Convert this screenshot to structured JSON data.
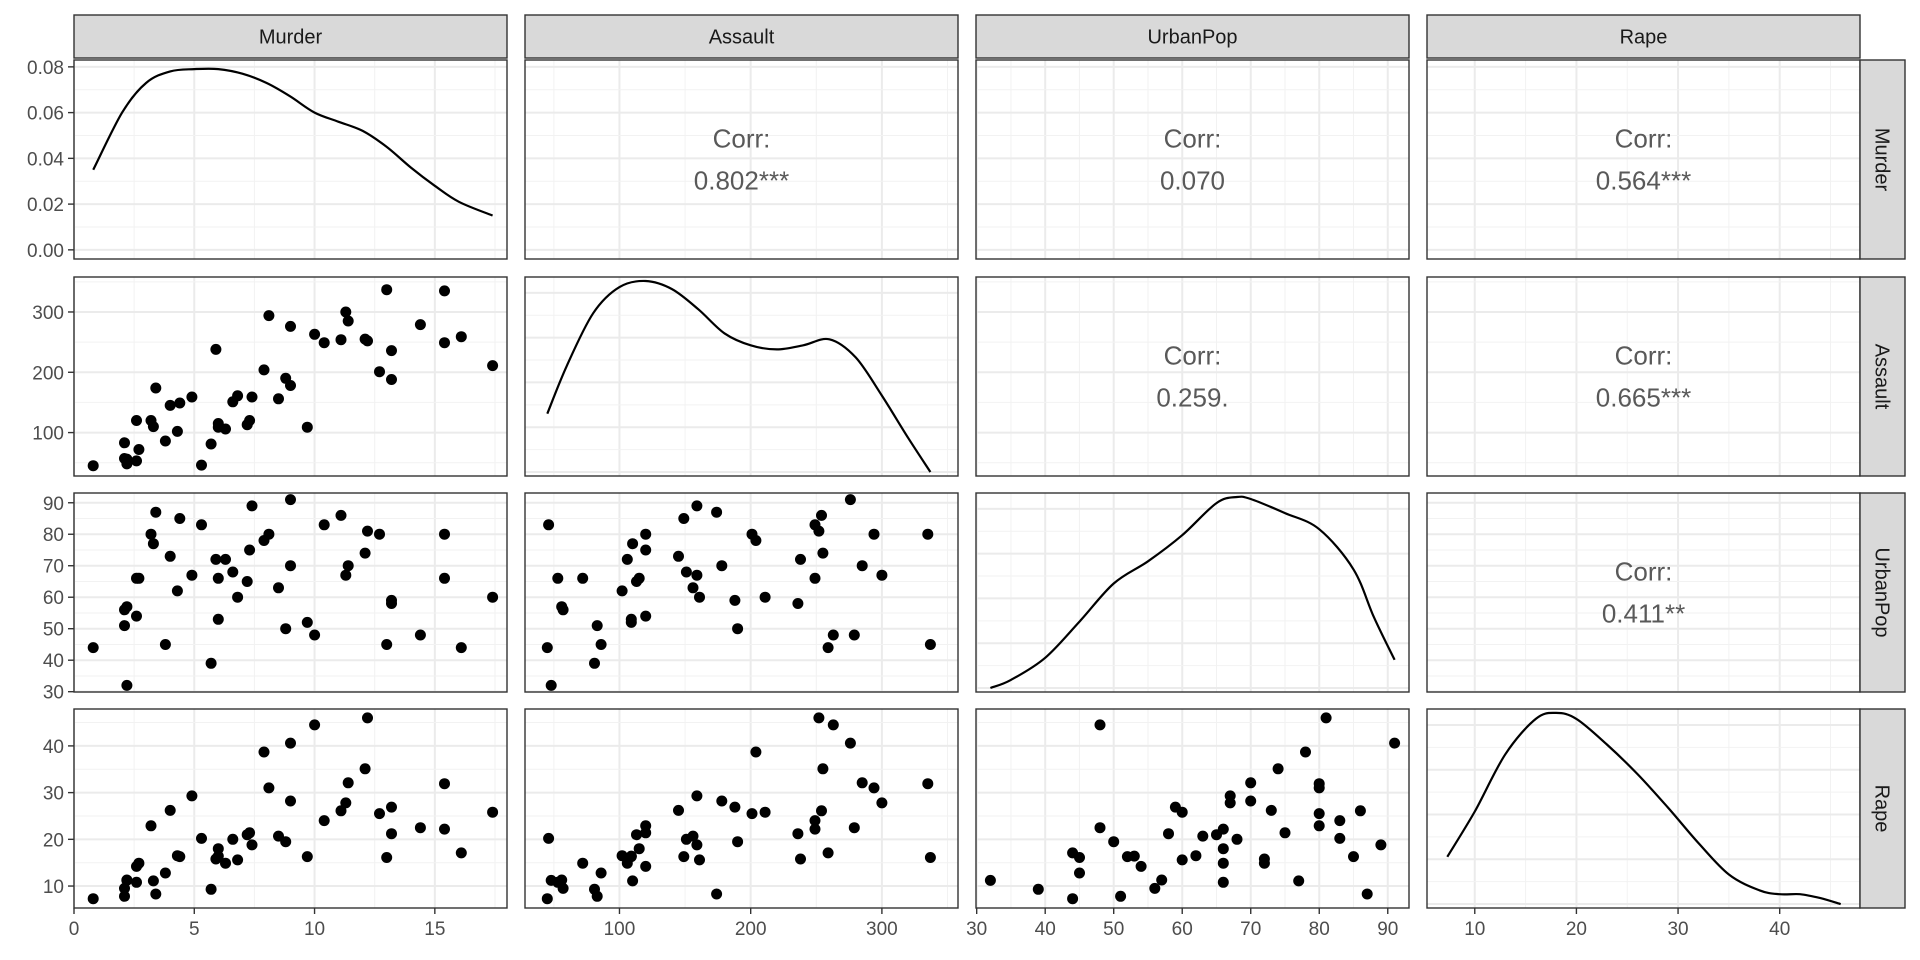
{
  "chart_data": {
    "type": "scatter-matrix",
    "variables": [
      "Murder",
      "Assault",
      "UrbanPop",
      "Rape"
    ],
    "columns": [
      {
        "name": "Murder",
        "range": [
          0,
          18
        ],
        "ticks": [
          {
            "v": 0,
            "label": "0"
          },
          {
            "v": 5,
            "label": "5"
          },
          {
            "v": 10,
            "label": "10"
          },
          {
            "v": 15,
            "label": "15"
          }
        ]
      },
      {
        "name": "Assault",
        "range": [
          28,
          358
        ],
        "ticks": [
          {
            "v": 100,
            "label": "100"
          },
          {
            "v": 200,
            "label": "200"
          },
          {
            "v": 300,
            "label": "300"
          }
        ]
      },
      {
        "name": "UrbanPop",
        "range": [
          29.9,
          93.1
        ],
        "ticks": [
          {
            "v": 30,
            "label": "30"
          },
          {
            "v": 40,
            "label": "40"
          },
          {
            "v": 50,
            "label": "50"
          },
          {
            "v": 60,
            "label": "60"
          },
          {
            "v": 70,
            "label": "70"
          },
          {
            "v": 80,
            "label": "80"
          },
          {
            "v": 90,
            "label": "90"
          }
        ]
      },
      {
        "name": "Rape",
        "range": [
          5.3,
          47.9
        ],
        "ticks": [
          {
            "v": 10,
            "label": "10"
          },
          {
            "v": 20,
            "label": "20"
          },
          {
            "v": 30,
            "label": "30"
          },
          {
            "v": 40,
            "label": "40"
          }
        ]
      }
    ],
    "rows": [
      {
        "name": "Murder",
        "range": [
          -0.004,
          0.083
        ],
        "ticks": [
          {
            "v": 0,
            "label": "0.00"
          },
          {
            "v": 0.02,
            "label": "0.02"
          },
          {
            "v": 0.04,
            "label": "0.04"
          },
          {
            "v": 0.06,
            "label": "0.06"
          },
          {
            "v": 0.08,
            "label": "0.08"
          }
        ]
      },
      {
        "name": "Assault",
        "range": [
          28,
          358
        ],
        "ticks": [
          {
            "v": 100,
            "label": "100"
          },
          {
            "v": 200,
            "label": "200"
          },
          {
            "v": 300,
            "label": "300"
          }
        ]
      },
      {
        "name": "UrbanPop",
        "range": [
          29.9,
          93.1
        ],
        "ticks": [
          {
            "v": 30,
            "label": "30"
          },
          {
            "v": 40,
            "label": "40"
          },
          {
            "v": 50,
            "label": "50"
          },
          {
            "v": 60,
            "label": "60"
          },
          {
            "v": 70,
            "label": "70"
          },
          {
            "v": 80,
            "label": "80"
          },
          {
            "v": 90,
            "label": "90"
          }
        ]
      },
      {
        "name": "Rape",
        "range": [
          5.3,
          47.9
        ],
        "ticks": [
          {
            "v": 10,
            "label": "10"
          },
          {
            "v": 20,
            "label": "20"
          },
          {
            "v": 30,
            "label": "30"
          },
          {
            "v": 40,
            "label": "40"
          }
        ]
      }
    ],
    "correlations": [
      {
        "row": 0,
        "col": 1,
        "label": "Corr:",
        "value": "0.802***"
      },
      {
        "row": 0,
        "col": 2,
        "label": "Corr:",
        "value": "0.070"
      },
      {
        "row": 0,
        "col": 3,
        "label": "Corr:",
        "value": "0.564***"
      },
      {
        "row": 1,
        "col": 2,
        "label": "Corr:",
        "value": "0.259."
      },
      {
        "row": 1,
        "col": 3,
        "label": "Corr:",
        "value": "0.665***"
      },
      {
        "row": 2,
        "col": 3,
        "label": "Corr:",
        "value": "0.411**"
      }
    ],
    "densities": {
      "Murder": {
        "x": [
          0.8,
          2,
          3,
          4,
          5,
          6,
          7,
          8,
          9,
          10,
          11,
          12,
          13,
          14,
          15,
          16,
          17.4
        ],
        "y": [
          0.035,
          0.06,
          0.073,
          0.078,
          0.079,
          0.079,
          0.077,
          0.073,
          0.067,
          0.06,
          0.056,
          0.052,
          0.045,
          0.036,
          0.028,
          0.021,
          0.015
        ]
      },
      "Assault": {
        "x": [
          45,
          60,
          80,
          100,
          120,
          140,
          160,
          180,
          200,
          220,
          240,
          260,
          280,
          300,
          320,
          337
        ],
        "y": [
          0.34,
          0.58,
          0.84,
          0.97,
          1.0,
          0.96,
          0.86,
          0.74,
          0.68,
          0.66,
          0.68,
          0.71,
          0.62,
          0.43,
          0.22,
          0.05
        ]
      },
      "UrbanPop": {
        "x": [
          32,
          35,
          40,
          45,
          50,
          55,
          60,
          65,
          68,
          70,
          75,
          80,
          85,
          88,
          91
        ],
        "y": [
          0.03,
          0.07,
          0.18,
          0.36,
          0.55,
          0.66,
          0.79,
          0.95,
          0.98,
          0.97,
          0.9,
          0.82,
          0.62,
          0.38,
          0.17
        ]
      },
      "Rape": {
        "x": [
          7.3,
          10,
          13,
          16,
          18,
          20,
          23,
          26,
          29,
          32,
          35,
          38,
          40,
          42,
          44,
          46
        ],
        "y": [
          0.27,
          0.5,
          0.79,
          0.97,
          1.0,
          0.97,
          0.84,
          0.69,
          0.52,
          0.34,
          0.18,
          0.1,
          0.08,
          0.08,
          0.06,
          0.03
        ]
      }
    },
    "points": {
      "Murder": [
        13.2,
        10,
        8.1,
        8.8,
        9,
        7.9,
        3.3,
        5.9,
        15.4,
        17.4,
        5.3,
        2.6,
        10.4,
        7.2,
        2.2,
        6,
        9.7,
        15.4,
        2.1,
        11.3,
        4.4,
        12.1,
        2.7,
        16.1,
        9,
        6,
        4.3,
        12.2,
        2.1,
        7.4,
        11.4,
        11.1,
        13,
        0.8,
        7.3,
        6.6,
        4.9,
        6.3,
        3.4,
        14.4,
        3.8,
        13.2,
        12.7,
        3.2,
        2.2,
        8.5,
        4,
        5.7,
        2.6,
        6.8
      ],
      "Assault": [
        236,
        263,
        294,
        190,
        276,
        204,
        110,
        238,
        335,
        211,
        46,
        120,
        249,
        113,
        56,
        115,
        109,
        249,
        83,
        300,
        149,
        255,
        72,
        259,
        178,
        109,
        102,
        252,
        57,
        159,
        285,
        254,
        337,
        45,
        120,
        151,
        159,
        106,
        174,
        279,
        86,
        188,
        201,
        120,
        48,
        156,
        145,
        81,
        53,
        161
      ],
      "UrbanPop": [
        58,
        48,
        80,
        50,
        91,
        78,
        77,
        72,
        80,
        60,
        83,
        54,
        83,
        65,
        57,
        66,
        52,
        66,
        51,
        67,
        85,
        74,
        66,
        44,
        70,
        53,
        62,
        81,
        56,
        89,
        70,
        86,
        45,
        44,
        75,
        68,
        67,
        72,
        87,
        48,
        45,
        59,
        80,
        80,
        32,
        63,
        73,
        39,
        66,
        60
      ],
      "Rape": [
        21.2,
        44.5,
        31,
        19.5,
        40.6,
        38.7,
        11.1,
        15.8,
        31.9,
        25.8,
        20.2,
        14.2,
        24,
        21,
        11.3,
        18,
        16.3,
        22.2,
        7.8,
        27.8,
        16.3,
        35.1,
        14.9,
        17.1,
        28.2,
        16.4,
        16.5,
        46,
        9.5,
        18.8,
        32.1,
        26.1,
        16.1,
        7.3,
        21.4,
        20,
        29.3,
        14.9,
        8.3,
        22.5,
        12.8,
        26.9,
        25.5,
        22.9,
        11.2,
        20.7,
        26.2,
        9.3,
        10.8,
        15.6
      ]
    }
  }
}
